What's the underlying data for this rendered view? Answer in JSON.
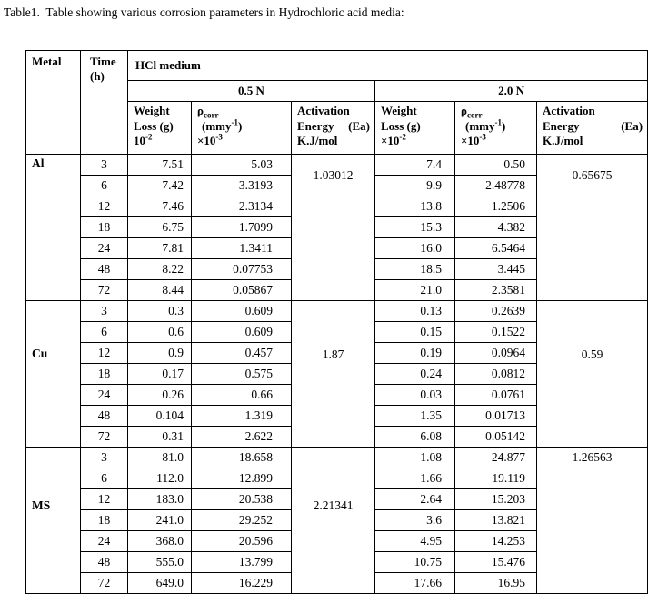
{
  "title": "Table1.  Table showing various corrosion parameters in Hydrochloric acid media:",
  "colors": {
    "text": "#000000",
    "border": "#000000",
    "background": "#ffffff"
  },
  "headers": {
    "metal": "Metal",
    "time": {
      "l1": "Time",
      "l2": "(h)"
    },
    "medium": "HCl medium",
    "conc_05": "0.5 N",
    "conc_20": "2.0 N",
    "weight_05": {
      "l1": "Weight",
      "l2": "Loss (g)",
      "l3_base": "10",
      "l3_sup": "-2"
    },
    "rho_05": {
      "l1_base": "ρ",
      "l1_sub": "corr",
      "l2_open": "(mmy",
      "l2_sup": "-1",
      "l2_close": ")",
      "l3_base": "×10",
      "l3_sup": "-3"
    },
    "act_05": {
      "l1": "Activation",
      "l2_left": "Energy",
      "l2_right": "(Ea)",
      "l3": "K.J/mol"
    },
    "weight_20": {
      "l1": "Weight",
      "l2": "Loss (g)",
      "l3_base": "×10",
      "l3_sup": "-2"
    },
    "rho_20": {
      "l1_base": "ρ",
      "l1_sub": "corr",
      "l2_open": "(mmy",
      "l2_sup": "-1",
      "l2_close": ")",
      "l3_base": "×10",
      "l3_sup": "-3"
    },
    "act_20": {
      "l1": "Activation",
      "l2_left": "Energy",
      "l2_right": "(Ea)",
      "l3": "K.J/mol"
    }
  },
  "blocks": [
    {
      "metal": "Al",
      "act_05": "1.03012",
      "act_20": "0.65675",
      "rows": [
        {
          "time": "3",
          "wl_05": "7.51",
          "rho_05": "5.03",
          "wl_20": "7.4",
          "rho_20": "0.50"
        },
        {
          "time": "6",
          "wl_05": "7.42",
          "rho_05": "3.3193",
          "wl_20": "9.9",
          "rho_20": "2.48778"
        },
        {
          "time": "12",
          "wl_05": "7.46",
          "rho_05": "2.3134",
          "wl_20": "13.8",
          "rho_20": "1.2506"
        },
        {
          "time": "18",
          "wl_05": "6.75",
          "rho_05": "1.7099",
          "wl_20": "15.3",
          "rho_20": "4.382"
        },
        {
          "time": "24",
          "wl_05": "7.81",
          "rho_05": "1.3411",
          "wl_20": "16.0",
          "rho_20": "6.5464"
        },
        {
          "time": "48",
          "wl_05": "8.22",
          "rho_05": "0.07753",
          "wl_20": "18.5",
          "rho_20": "3.445"
        },
        {
          "time": "72",
          "wl_05": "8.44",
          "rho_05": "0.05867",
          "wl_20": "21.0",
          "rho_20": "2.3581"
        }
      ]
    },
    {
      "metal": "Cu",
      "act_05": "1.87",
      "act_20": "0.59",
      "rows": [
        {
          "time": "3",
          "wl_05": "0.3",
          "rho_05": "0.609",
          "wl_20": "0.13",
          "rho_20": "0.2639"
        },
        {
          "time": "6",
          "wl_05": "0.6",
          "rho_05": "0.609",
          "wl_20": "0.15",
          "rho_20": "0.1522"
        },
        {
          "time": "12",
          "wl_05": "0.9",
          "rho_05": "0.457",
          "wl_20": "0.19",
          "rho_20": "0.0964"
        },
        {
          "time": "18",
          "wl_05": "0.17",
          "rho_05": "0.575",
          "wl_20": "0.24",
          "rho_20": "0.0812"
        },
        {
          "time": "24",
          "wl_05": "0.26",
          "rho_05": "0.66",
          "wl_20": "0.03",
          "rho_20": "0.0761"
        },
        {
          "time": "48",
          "wl_05": "0.104",
          "rho_05": "1.319",
          "wl_20": "1.35",
          "rho_20": "0.01713"
        },
        {
          "time": "72",
          "wl_05": "0.31",
          "rho_05": "2.622",
          "wl_20": "6.08",
          "rho_20": "0.05142"
        }
      ]
    },
    {
      "metal": "MS",
      "act_05": "2.21341",
      "act_20": "1.26563",
      "rows": [
        {
          "time": "3",
          "wl_05": "81.0",
          "rho_05": "18.658",
          "wl_20": "1.08",
          "rho_20": "24.877"
        },
        {
          "time": "6",
          "wl_05": "112.0",
          "rho_05": "12.899",
          "wl_20": "1.66",
          "rho_20": "19.119"
        },
        {
          "time": "12",
          "wl_05": "183.0",
          "rho_05": "20.538",
          "wl_20": "2.64",
          "rho_20": "15.203"
        },
        {
          "time": "18",
          "wl_05": "241.0",
          "rho_05": "29.252",
          "wl_20": "3.6",
          "rho_20": "13.821"
        },
        {
          "time": "24",
          "wl_05": "368.0",
          "rho_05": "20.596",
          "wl_20": "4.95",
          "rho_20": "14.253"
        },
        {
          "time": "48",
          "wl_05": "555.0",
          "rho_05": "13.799",
          "wl_20": "10.75",
          "rho_20": "15.476"
        },
        {
          "time": "72",
          "wl_05": "649.0",
          "rho_05": "16.229",
          "wl_20": "17.66",
          "rho_20": "16.95"
        }
      ]
    }
  ]
}
